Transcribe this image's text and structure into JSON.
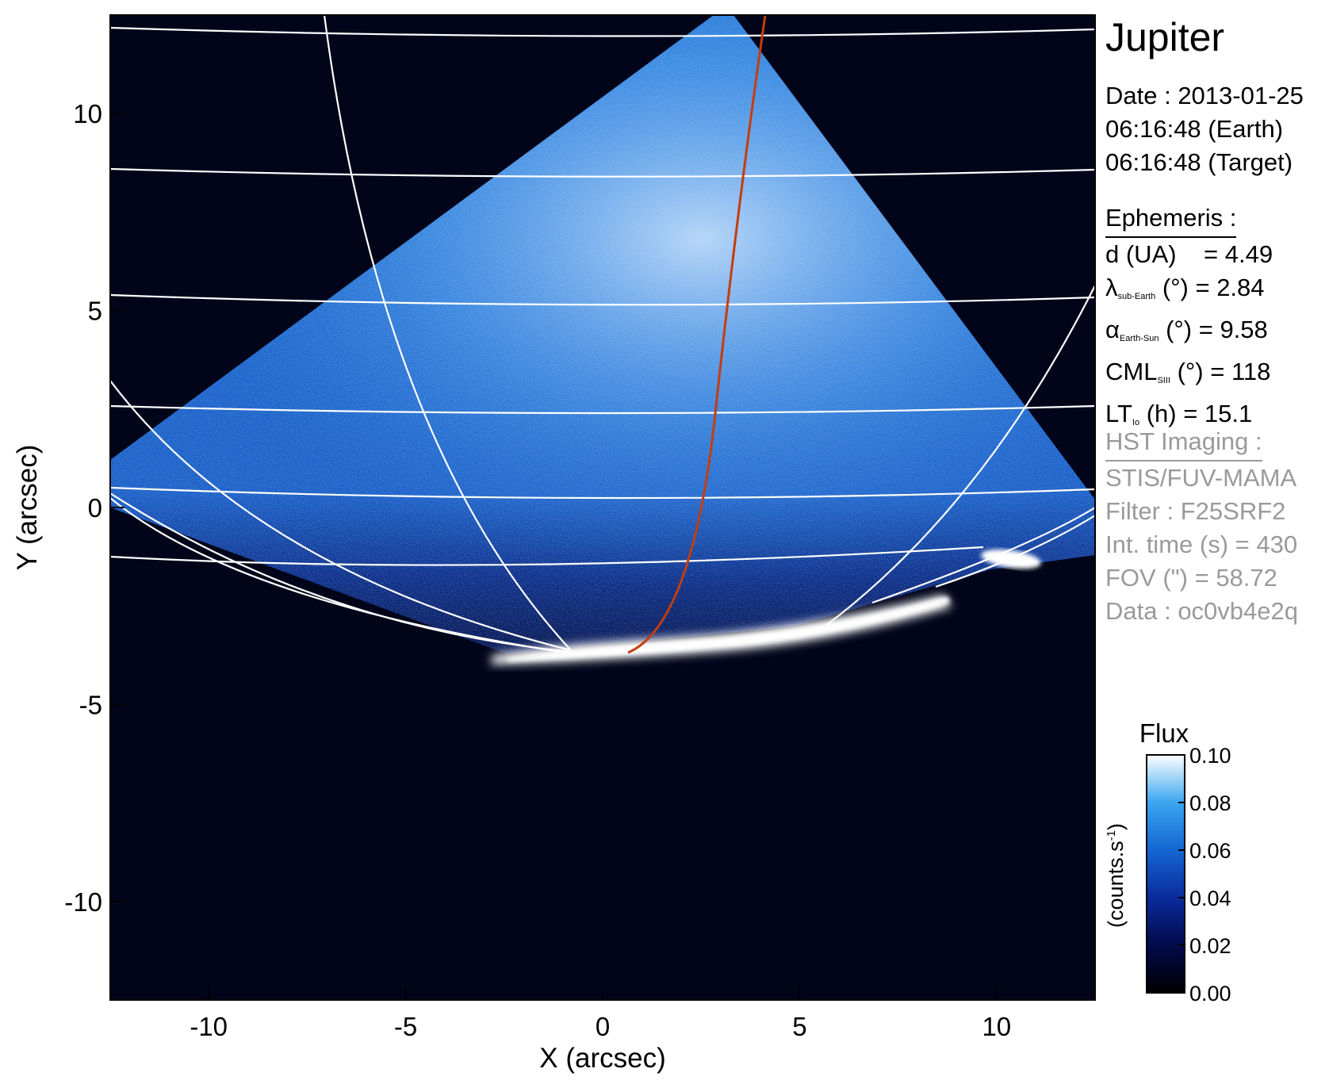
{
  "chart_data": {
    "type": "heatmap",
    "title": "Jupiter",
    "xlabel": "X (arcsec)",
    "ylabel": "Y (arcsec)",
    "xlim": [
      -12.5,
      12.5
    ],
    "ylim": [
      -12.5,
      12.5
    ],
    "xticks": [
      -10,
      -5,
      0,
      5,
      10
    ],
    "yticks": [
      10,
      5,
      0,
      -5,
      -10
    ],
    "xtick_labels": [
      "-10",
      "-5",
      "0",
      "5",
      "10"
    ],
    "ytick_labels": [
      "10",
      "5",
      "0",
      "-5",
      "-10"
    ],
    "colorbar": {
      "title": "Flux",
      "label": "(counts.s",
      "label_sup": "-1",
      "label_close": ")",
      "range": [
        0.0,
        0.1
      ],
      "ticks": [
        0.0,
        0.02,
        0.04,
        0.06,
        0.08,
        0.1
      ],
      "tick_labels": [
        "0.00",
        "0.02",
        "0.04",
        "0.06",
        "0.08",
        "0.10"
      ]
    },
    "colors": {
      "background": "#02051a",
      "disk": "#1c6fd4",
      "bright": "#ffffff",
      "grid": "#ffffff",
      "footpath": "#c43d0f"
    }
  },
  "info": {
    "date_line": "Date : 2013-01-25",
    "earth_time": "06:16:48 (Earth)",
    "target_time": "06:16:48 (Target)",
    "ephemeris_header": "Ephemeris :",
    "d_label": "d (UA)    = 4.49",
    "lambda_symbol": "λ",
    "lambda_sub": "sub-Earth",
    "lambda_rest": " (°) = 2.84",
    "alpha_symbol": "α",
    "alpha_sub": "Earth-Sun",
    "alpha_rest": " (°) = 9.58",
    "cml_main": "CML",
    "cml_sub": "SIII",
    "cml_rest": " (°) = 118",
    "lt_main": "LT",
    "lt_sub": "Io",
    "lt_rest": " (h) = 15.1",
    "hst_header": "HST Imaging :",
    "instrument": "STIS/FUV-MAMA",
    "filter": "Filter : F25SRF2",
    "int_time": "Int. time (s) = 430",
    "fov": "FOV (\") = 58.72",
    "data_id": "Data : oc0vb4e2q"
  }
}
